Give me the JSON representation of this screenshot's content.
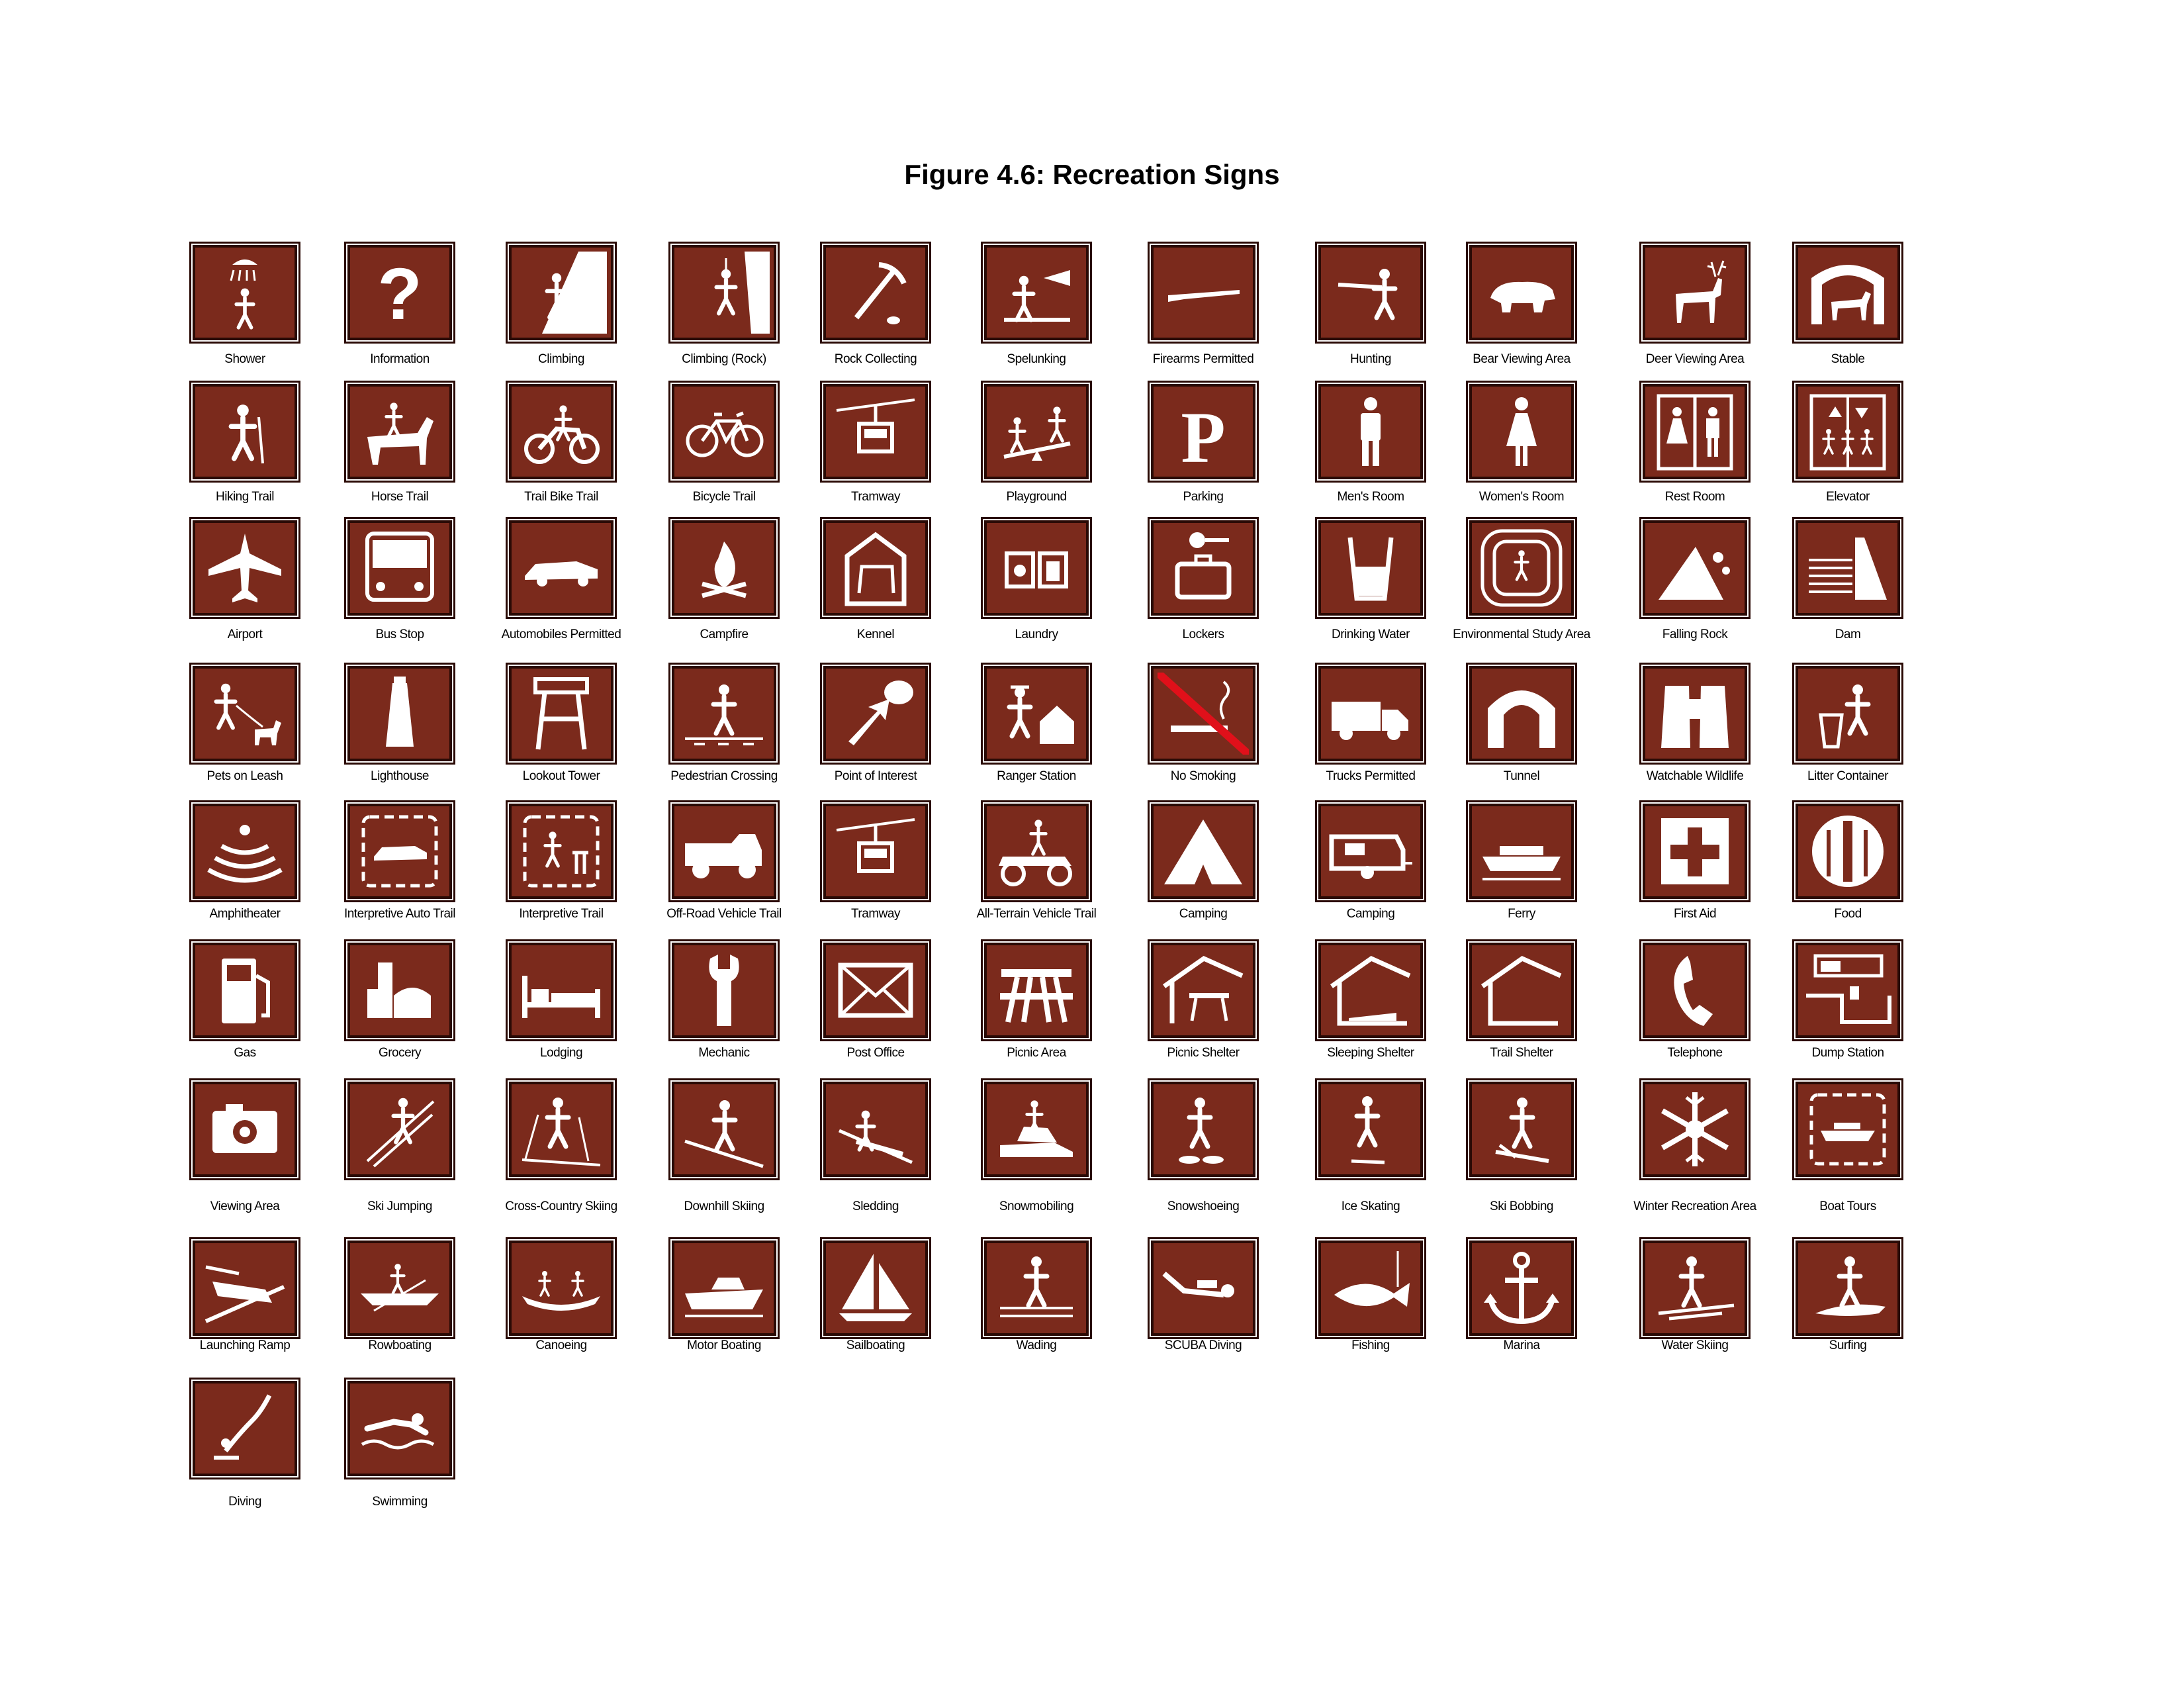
{
  "document": {
    "title": "Figure 4.6: Recreation Signs",
    "sign_color": "#7b2a1c",
    "symbol_color": "#ffffff"
  },
  "rows": [
    {
      "signs": [
        {
          "label": "Shower",
          "icon": "shower-icon"
        },
        {
          "label": "Information",
          "icon": "question-mark-icon"
        },
        {
          "label": "Climbing",
          "icon": "climbing-icon"
        },
        {
          "label": "Climbing (Rock)",
          "icon": "rock-climbing-icon"
        },
        {
          "label": "Rock Collecting",
          "icon": "pickaxe-icon"
        },
        {
          "label": "Spelunking",
          "icon": "spelunking-icon"
        },
        {
          "label": "Firearms Permitted",
          "icon": "firearm-icon"
        },
        {
          "label": "Hunting",
          "icon": "hunter-icon"
        },
        {
          "label": "Bear Viewing Area",
          "icon": "bear-icon"
        },
        {
          "label": "Deer Viewing Area",
          "icon": "deer-icon"
        },
        {
          "label": "Stable",
          "icon": "stable-icon"
        }
      ]
    },
    {
      "signs": [
        {
          "label": "Hiking Trail",
          "icon": "hiker-icon"
        },
        {
          "label": "Horse Trail",
          "icon": "horse-rider-icon"
        },
        {
          "label": "Trail Bike Trail",
          "icon": "trail-bike-icon"
        },
        {
          "label": "Bicycle Trail",
          "icon": "bicycle-icon"
        },
        {
          "label": "Tramway",
          "icon": "tramway-icon"
        },
        {
          "label": "Playground",
          "icon": "playground-icon"
        },
        {
          "label": "Parking",
          "icon": "parking-icon"
        },
        {
          "label": "Men's Room",
          "icon": "man-icon"
        },
        {
          "label": "Women's Room",
          "icon": "woman-icon"
        },
        {
          "label": "Rest Room",
          "icon": "restroom-icon"
        },
        {
          "label": "Elevator",
          "icon": "elevator-icon"
        }
      ]
    },
    {
      "signs": [
        {
          "label": "Airport",
          "icon": "airplane-icon"
        },
        {
          "label": "Bus Stop",
          "icon": "bus-icon"
        },
        {
          "label": "Automobiles Permitted",
          "icon": "automobile-icon"
        },
        {
          "label": "Campfire",
          "icon": "campfire-icon"
        },
        {
          "label": "Kennel",
          "icon": "kennel-icon"
        },
        {
          "label": "Laundry",
          "icon": "laundry-icon"
        },
        {
          "label": "Lockers",
          "icon": "locker-icon"
        },
        {
          "label": "Drinking Water",
          "icon": "water-glass-icon"
        },
        {
          "label": "Environmental Study Area",
          "icon": "environmental-study-icon"
        },
        {
          "label": "Falling Rock",
          "icon": "falling-rock-icon"
        },
        {
          "label": "Dam",
          "icon": "dam-icon"
        }
      ]
    },
    {
      "signs": [
        {
          "label": "Pets on Leash",
          "icon": "pet-leash-icon"
        },
        {
          "label": "Lighthouse",
          "icon": "lighthouse-icon"
        },
        {
          "label": "Lookout Tower",
          "icon": "lookout-tower-icon"
        },
        {
          "label": "Pedestrian Crossing",
          "icon": "pedestrian-icon"
        },
        {
          "label": "Point of Interest",
          "icon": "point-of-interest-icon"
        },
        {
          "label": "Ranger Station",
          "icon": "ranger-station-icon"
        },
        {
          "label": "No Smoking",
          "icon": "no-smoking-icon"
        },
        {
          "label": "Trucks Permitted",
          "icon": "truck-icon"
        },
        {
          "label": "Tunnel",
          "icon": "tunnel-icon"
        },
        {
          "label": "Watchable Wildlife",
          "icon": "binoculars-icon"
        },
        {
          "label": "Litter Container",
          "icon": "litter-icon"
        }
      ]
    },
    {
      "signs": [
        {
          "label": "Amphitheater",
          "icon": "amphitheater-icon"
        },
        {
          "label": "Interpretive Auto Trail",
          "icon": "interpretive-auto-icon"
        },
        {
          "label": "Interpretive Trail",
          "icon": "interpretive-trail-icon"
        },
        {
          "label": "Off-Road Vehicle Trail",
          "icon": "off-road-vehicle-icon"
        },
        {
          "label": "Tramway",
          "icon": "tramway-icon"
        },
        {
          "label": "All-Terrain Vehicle Trail",
          "icon": "atv-icon"
        },
        {
          "label": "Camping",
          "icon": "tent-icon"
        },
        {
          "label": "Camping",
          "icon": "camper-trailer-icon"
        },
        {
          "label": "Ferry",
          "icon": "ferry-icon"
        },
        {
          "label": "First Aid",
          "icon": "first-aid-icon"
        },
        {
          "label": "Food",
          "icon": "food-icon"
        }
      ]
    },
    {
      "signs": [
        {
          "label": "Gas",
          "icon": "gas-pump-icon"
        },
        {
          "label": "Grocery",
          "icon": "grocery-icon"
        },
        {
          "label": "Lodging",
          "icon": "bed-icon"
        },
        {
          "label": "Mechanic",
          "icon": "wrench-icon"
        },
        {
          "label": "Post Office",
          "icon": "envelope-icon"
        },
        {
          "label": "Picnic Area",
          "icon": "picnic-table-icon"
        },
        {
          "label": "Picnic Shelter",
          "icon": "picnic-shelter-icon"
        },
        {
          "label": "Sleeping Shelter",
          "icon": "sleeping-shelter-icon"
        },
        {
          "label": "Trail Shelter",
          "icon": "trail-shelter-icon"
        },
        {
          "label": "Telephone",
          "icon": "telephone-icon"
        },
        {
          "label": "Dump Station",
          "icon": "dump-station-icon"
        }
      ]
    },
    {
      "signs": [
        {
          "label": "Viewing Area",
          "icon": "camera-icon"
        },
        {
          "label": "Ski Jumping",
          "icon": "ski-jumping-icon"
        },
        {
          "label": "Cross-Country Skiing",
          "icon": "cross-country-ski-icon"
        },
        {
          "label": "Downhill Skiing",
          "icon": "downhill-ski-icon"
        },
        {
          "label": "Sledding",
          "icon": "sledding-icon"
        },
        {
          "label": "Snowmobiling",
          "icon": "snowmobile-icon"
        },
        {
          "label": "Snowshoeing",
          "icon": "snowshoe-icon"
        },
        {
          "label": "Ice Skating",
          "icon": "ice-skating-icon"
        },
        {
          "label": "Ski Bobbing",
          "icon": "ski-bob-icon"
        },
        {
          "label": "Winter Recreation Area",
          "icon": "snowflake-icon"
        },
        {
          "label": "Boat Tours",
          "icon": "boat-tour-icon"
        }
      ]
    },
    {
      "signs": [
        {
          "label": "Launching Ramp",
          "icon": "launch-ramp-icon"
        },
        {
          "label": "Rowboating",
          "icon": "rowboat-icon"
        },
        {
          "label": "Canoeing",
          "icon": "canoe-icon"
        },
        {
          "label": "Motor Boating",
          "icon": "motorboat-icon"
        },
        {
          "label": "Sailboating",
          "icon": "sailboat-icon"
        },
        {
          "label": "Wading",
          "icon": "wading-icon"
        },
        {
          "label": "SCUBA Diving",
          "icon": "scuba-icon"
        },
        {
          "label": "Fishing",
          "icon": "fish-icon"
        },
        {
          "label": "Marina",
          "icon": "anchor-icon"
        },
        {
          "label": "Water Skiing",
          "icon": "water-ski-icon"
        },
        {
          "label": "Surfing",
          "icon": "surfing-icon"
        }
      ]
    },
    {
      "signs": [
        {
          "label": "Diving",
          "icon": "diving-icon"
        },
        {
          "label": "Swimming",
          "icon": "swimming-icon"
        }
      ]
    }
  ]
}
